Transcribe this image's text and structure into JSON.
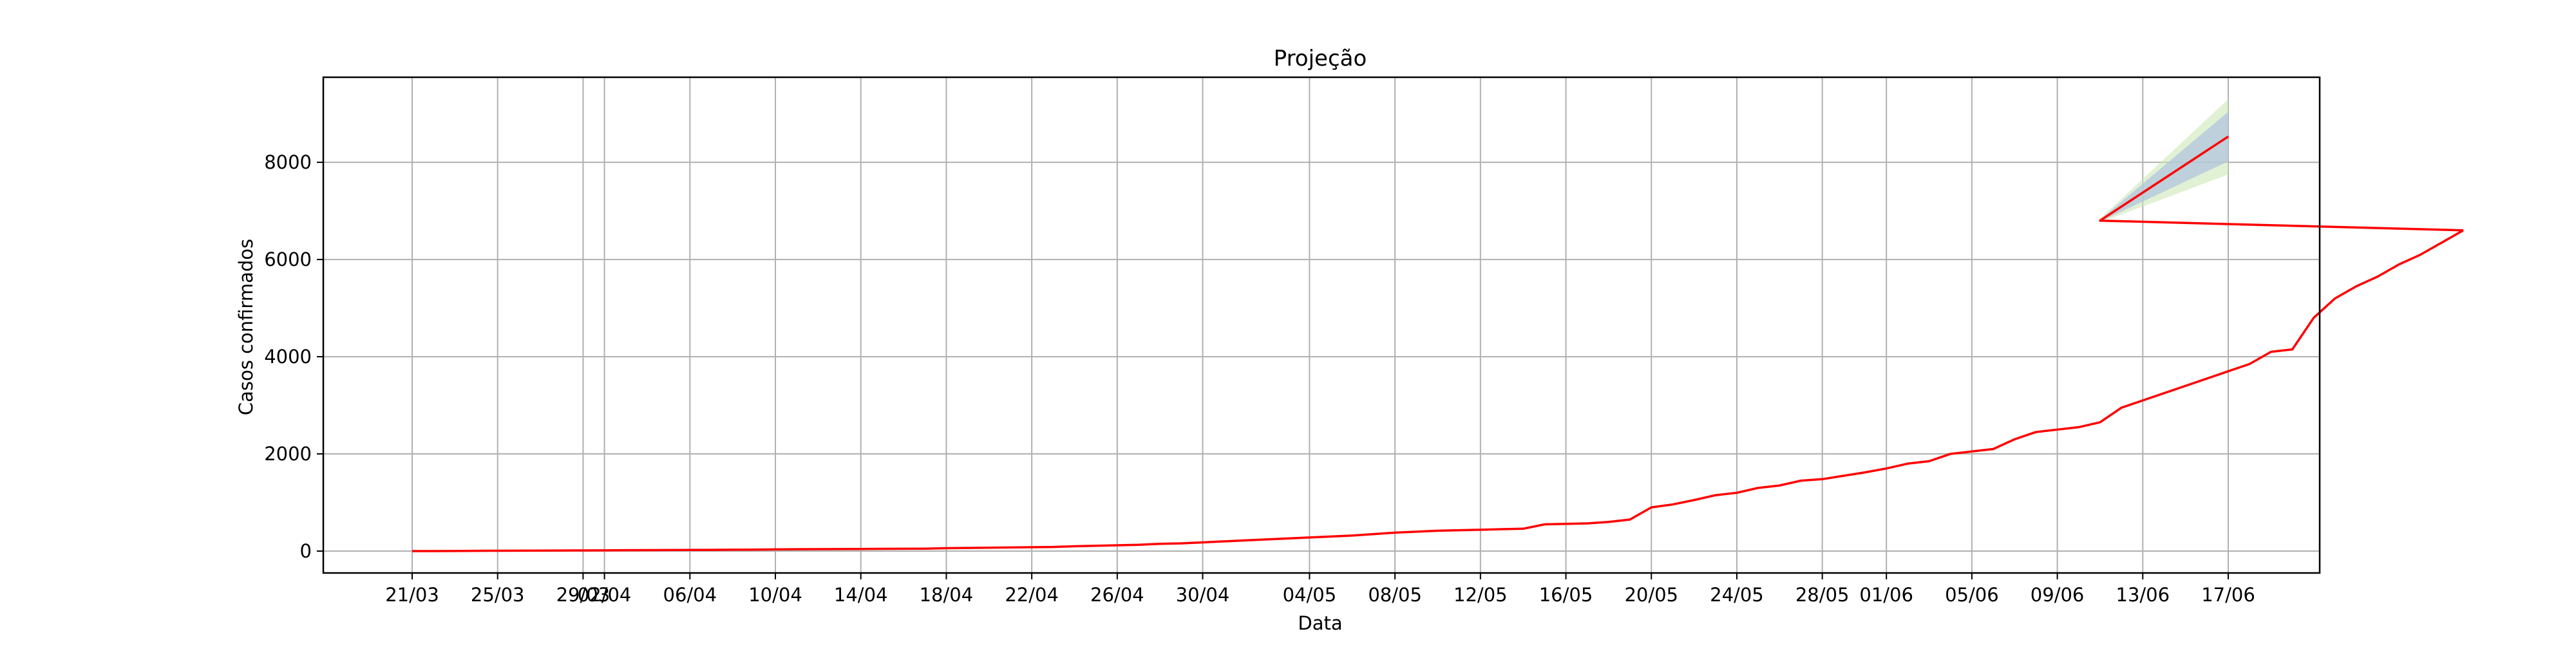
{
  "chart_data": {
    "type": "line",
    "title": "Projeção",
    "xlabel": "Data",
    "ylabel": "Casos confirmados",
    "x_tick_labels": [
      "21/03",
      "25/03",
      "29/03",
      "02/04",
      "06/04",
      "10/04",
      "14/04",
      "18/04",
      "22/04",
      "26/04",
      "30/04",
      "04/05",
      "08/05",
      "12/05",
      "16/05",
      "20/05",
      "24/05",
      "28/05",
      "01/06",
      "05/06",
      "09/06",
      "13/06",
      "17/06"
    ],
    "y_ticks": [
      0,
      2000,
      4000,
      6000,
      8000
    ],
    "ylim": [
      -450,
      9750
    ],
    "grid": true,
    "colors": {
      "line": "#ff0000",
      "band_inner": "#b0c4de",
      "band_outer": "#c8e6b0",
      "grid": "#b0b0b0"
    },
    "series": [
      {
        "start_date": "21/03",
        "values": [
          0,
          0,
          2,
          5,
          7,
          9,
          10,
          12,
          14,
          16,
          18,
          20,
          22,
          24,
          26,
          28,
          30,
          35,
          38,
          40,
          42,
          44,
          46,
          48,
          50,
          60,
          65,
          70,
          75,
          80,
          85,
          100,
          110,
          120,
          130,
          150,
          160,
          180,
          200,
          220,
          240,
          260,
          280,
          300,
          320,
          350,
          380,
          400,
          420,
          430,
          440,
          450,
          460,
          550,
          560,
          570,
          600,
          650,
          900,
          960,
          1050,
          1150,
          1200,
          1300,
          1350,
          1450,
          1480,
          1550,
          1620,
          1700,
          1800,
          1850,
          2000,
          2050,
          2100,
          2300,
          2450,
          2500,
          2550,
          2650,
          2950,
          3100,
          3250,
          3400,
          3550,
          3700,
          3850,
          4100,
          4150,
          4800,
          5200,
          5450,
          5650,
          5900,
          6100,
          6350,
          6600
        ]
      }
    ],
    "projection": {
      "dates": [
        "11/06",
        "17/06"
      ],
      "central": [
        6800,
        8530
      ],
      "lower_inner": [
        6780,
        8020
      ],
      "upper_inner": [
        6820,
        9040
      ],
      "lower_outer": [
        6760,
        7750
      ],
      "upper_outer": [
        6840,
        9300
      ]
    }
  }
}
